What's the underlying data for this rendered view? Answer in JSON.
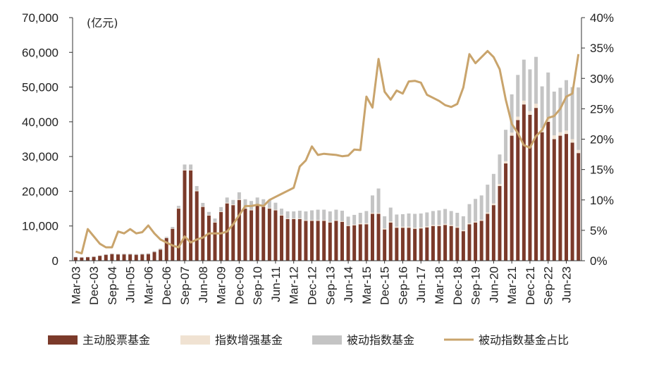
{
  "chart_data": {
    "type": "bar",
    "stacked": true,
    "y_unit_label": "(亿元)",
    "y_ticks": [
      "0",
      "10,000",
      "20,000",
      "30,000",
      "40,000",
      "50,000",
      "60,000",
      "70,000"
    ],
    "y_tick_values": [
      0,
      10000,
      20000,
      30000,
      40000,
      50000,
      60000,
      70000
    ],
    "ylim": [
      0,
      70000
    ],
    "y2_ticks": [
      "0%",
      "5%",
      "10%",
      "15%",
      "20%",
      "25%",
      "30%",
      "35%",
      "40%"
    ],
    "y2_tick_values": [
      0,
      5,
      10,
      15,
      20,
      25,
      30,
      35,
      40
    ],
    "y2lim": [
      0,
      40
    ],
    "x_tick_labels": [
      "Mar-03",
      "Dec-03",
      "Sep-04",
      "Jun-05",
      "Mar-06",
      "Dec-06",
      "Sep-07",
      "Jun-08",
      "Mar-09",
      "Dec-09",
      "Sep-10",
      "Jun-11",
      "Mar-12",
      "Dec-12",
      "Sep-13",
      "Jun-14",
      "Mar-15",
      "Dec-15",
      "Sep-16",
      "Jun-17",
      "Mar-18",
      "Dec-18",
      "Sep-19",
      "Jun-20",
      "Mar-21",
      "Dec-21",
      "Sep-22",
      "Jun-23"
    ],
    "colors": {
      "active": "#7b3a2a",
      "enhanced": "#f0e2d2",
      "passive": "#c4c4c4",
      "ratio": "#c9a46c"
    },
    "series": [
      {
        "name": "主动股票基金",
        "type": "bar",
        "values": [
          1000,
          900,
          1000,
          1100,
          1400,
          1700,
          1900,
          1800,
          1800,
          1800,
          1700,
          1800,
          1900,
          2500,
          3200,
          6500,
          9200,
          15000,
          26000,
          26000,
          20000,
          15500,
          13000,
          11000,
          14000,
          16500,
          16000,
          17500,
          15000,
          14500,
          16000,
          15500,
          15000,
          14500,
          13000,
          12000,
          12000,
          12000,
          11500,
          11500,
          11500,
          11500,
          11000,
          11500,
          11200,
          10000,
          10200,
          10500,
          10500,
          13500,
          13500,
          9000,
          11000,
          9500,
          9500,
          9500,
          9200,
          9300,
          9600,
          10000,
          10000,
          10300,
          10000,
          9500,
          8500,
          10500,
          11000,
          11500,
          13500,
          16000,
          21500,
          28000,
          36000,
          40500,
          45000,
          42000,
          44000,
          37000,
          40000,
          35000,
          36000,
          36500,
          34000,
          31000
        ]
      },
      {
        "name": "指数增强基金",
        "type": "bar",
        "values": [
          20,
          20,
          20,
          20,
          20,
          20,
          20,
          20,
          20,
          20,
          20,
          20,
          20,
          20,
          50,
          80,
          120,
          200,
          200,
          200,
          200,
          150,
          150,
          150,
          150,
          200,
          200,
          200,
          200,
          200,
          200,
          200,
          200,
          200,
          200,
          200,
          200,
          200,
          200,
          200,
          200,
          200,
          200,
          200,
          200,
          200,
          200,
          300,
          300,
          300,
          300,
          300,
          300,
          300,
          300,
          300,
          300,
          300,
          300,
          300,
          300,
          300,
          300,
          300,
          300,
          300,
          300,
          300,
          400,
          500,
          600,
          700,
          900,
          1000,
          1100,
          1100,
          1200,
          1200,
          1200,
          1100,
          1000,
          1000,
          1000,
          900
        ]
      },
      {
        "name": "被动指数基金",
        "type": "bar",
        "values": [
          100,
          100,
          100,
          100,
          100,
          100,
          150,
          150,
          200,
          200,
          200,
          200,
          200,
          250,
          250,
          300,
          400,
          600,
          1500,
          1500,
          1300,
          1000,
          900,
          1000,
          1300,
          1500,
          1300,
          2000,
          2500,
          2500,
          2000,
          2000,
          2300,
          2000,
          1800,
          2000,
          2000,
          2200,
          2500,
          2800,
          3000,
          3000,
          3000,
          3000,
          3000,
          2500,
          2800,
          3000,
          3500,
          5000,
          7000,
          3500,
          4000,
          3500,
          3600,
          3800,
          4000,
          4000,
          4000,
          4000,
          4200,
          4300,
          4000,
          4000,
          4000,
          5500,
          6500,
          7000,
          8000,
          8500,
          8500,
          9000,
          11000,
          12000,
          11800,
          12000,
          13500,
          12000,
          13000,
          12600,
          12800,
          14500,
          15000,
          18000
        ]
      },
      {
        "name": "被动指数基金占比",
        "type": "line",
        "axis": "right",
        "values": [
          1.5,
          1.2,
          5.2,
          4.0,
          2.8,
          2.2,
          2.2,
          4.8,
          4.5,
          5.2,
          4.5,
          4.7,
          5.8,
          4.5,
          3.5,
          3.0,
          2.5,
          2.2,
          4.0,
          3.0,
          3.5,
          3.8,
          4.5,
          4.5,
          4.5,
          4.8,
          6.0,
          7.5,
          9.0,
          9.0,
          9.2,
          9.0,
          10.0,
          10.5,
          11.0,
          11.5,
          12.0,
          15.5,
          16.5,
          18.8,
          17.4,
          17.6,
          17.5,
          17.4,
          17.2,
          17.3,
          18.3,
          18.2,
          27.0,
          25.2,
          33.2,
          27.8,
          26.5,
          28.0,
          27.5,
          29.5,
          29.6,
          29.3,
          27.3,
          26.8,
          26.3,
          25.6,
          25.3,
          25.8,
          28.5,
          34.0,
          32.5,
          33.5,
          34.5,
          33.5,
          31.5,
          26.5,
          22.5,
          21.0,
          19.0,
          18.6,
          20.5,
          21.5,
          23.5,
          23.8,
          25.0,
          27.0,
          27.5,
          34.0
        ]
      }
    ],
    "legend_position": "bottom"
  }
}
